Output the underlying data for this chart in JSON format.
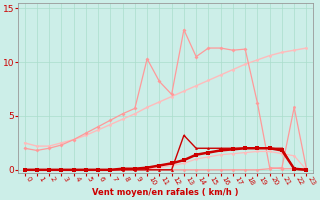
{
  "x": [
    0,
    1,
    2,
    3,
    4,
    5,
    6,
    7,
    8,
    9,
    10,
    11,
    12,
    13,
    14,
    15,
    16,
    17,
    18,
    19,
    20,
    21,
    22,
    23
  ],
  "line_pale_diag": [
    2.5,
    2.2,
    2.2,
    2.5,
    2.8,
    3.2,
    3.7,
    4.2,
    4.7,
    5.2,
    5.8,
    6.3,
    6.8,
    7.3,
    7.8,
    8.3,
    8.8,
    9.3,
    9.8,
    10.2,
    10.6,
    10.9,
    11.1,
    11.3
  ],
  "line_pale_spiky": [
    2.0,
    1.8,
    2.0,
    2.3,
    2.8,
    3.4,
    4.0,
    4.6,
    5.2,
    5.7,
    10.3,
    8.2,
    7.0,
    13.0,
    10.5,
    11.3,
    11.3,
    11.1,
    11.2,
    6.2,
    0.2,
    0.1,
    0.1,
    0.1
  ],
  "line_pale_lower": [
    0.0,
    0.0,
    0.0,
    0.0,
    0.0,
    0.0,
    0.0,
    0.0,
    0.0,
    0.0,
    0.1,
    0.2,
    0.4,
    0.6,
    1.0,
    1.2,
    1.4,
    1.5,
    1.6,
    1.7,
    1.7,
    1.5,
    1.3,
    0.0
  ],
  "line_pale_spike22": [
    0.0,
    0.0,
    0.0,
    0.0,
    0.0,
    0.0,
    0.0,
    0.0,
    0.0,
    0.0,
    0.0,
    0.0,
    0.0,
    0.0,
    0.0,
    0.0,
    0.0,
    0.0,
    0.0,
    0.0,
    0.1,
    0.2,
    5.8,
    0.1
  ],
  "line_dark_main": [
    0.0,
    0.0,
    0.0,
    0.0,
    0.0,
    0.0,
    0.0,
    0.0,
    0.1,
    0.1,
    0.2,
    0.4,
    0.6,
    0.9,
    1.4,
    1.6,
    1.8,
    1.9,
    2.0,
    2.0,
    2.0,
    1.8,
    0.1,
    0.0
  ],
  "line_dark_spiky": [
    0.0,
    0.0,
    0.0,
    0.0,
    0.0,
    0.0,
    0.0,
    0.0,
    0.0,
    0.0,
    0.0,
    0.0,
    0.0,
    3.2,
    2.0,
    2.0,
    2.0,
    2.0,
    2.0,
    2.0,
    2.0,
    2.0,
    0.05,
    0.0
  ],
  "bg_color": "#cceee8",
  "grid_color": "#aaddcc",
  "c_pale": "#ffbbbb",
  "c_med": "#ff9999",
  "c_dark": "#cc0000",
  "xlabel": "Vent moyen/en rafales ( km/h )",
  "ylim": [
    -0.3,
    15.5
  ],
  "xlim": [
    -0.5,
    23.5
  ],
  "yticks": [
    0,
    5,
    10,
    15
  ],
  "xticks": [
    0,
    1,
    2,
    3,
    4,
    5,
    6,
    7,
    8,
    9,
    10,
    11,
    12,
    13,
    14,
    15,
    16,
    17,
    18,
    19,
    20,
    21,
    22,
    23
  ]
}
